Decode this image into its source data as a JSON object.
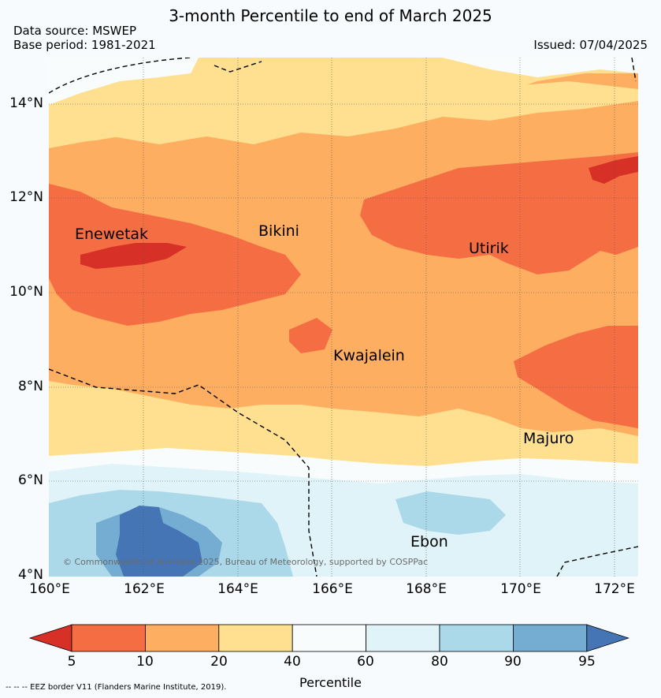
{
  "title": "3-month Percentile to end of March 2025",
  "data_source": "Data source: MSWEP",
  "base_period": "Base period: 1981-2021",
  "issued": "Issued: 07/04/2025",
  "map": {
    "lat_labels": [
      "14°N",
      "12°N",
      "10°N",
      "8°N",
      "6°N",
      "4°N"
    ],
    "lon_labels": [
      "160°E",
      "162°E",
      "164°E",
      "166°E",
      "168°E",
      "170°E",
      "172°E"
    ],
    "places": {
      "enewetak": "Enewetak",
      "bikini": "Bikini",
      "utirik": "Utirik",
      "kwajalein": "Kwajalein",
      "majuro": "Majuro",
      "ebon": "Ebon"
    },
    "copyright": "© Commonwealth of Australia 2025, Bureau of Meteorology, supported by COSPPac"
  },
  "colorbar": {
    "ticks": [
      "5",
      "10",
      "20",
      "40",
      "60",
      "80",
      "90",
      "95"
    ],
    "colors": [
      "#d73027",
      "#f46d43",
      "#fdae61",
      "#fee090",
      "#f8fcfd",
      "#e0f3f8",
      "#abd9e9",
      "#74add1",
      "#4575b4"
    ],
    "label": "Percentile"
  },
  "eez_note": "--  --  -- EEZ border V11 (Flanders Marine Institute, 2019)."
}
